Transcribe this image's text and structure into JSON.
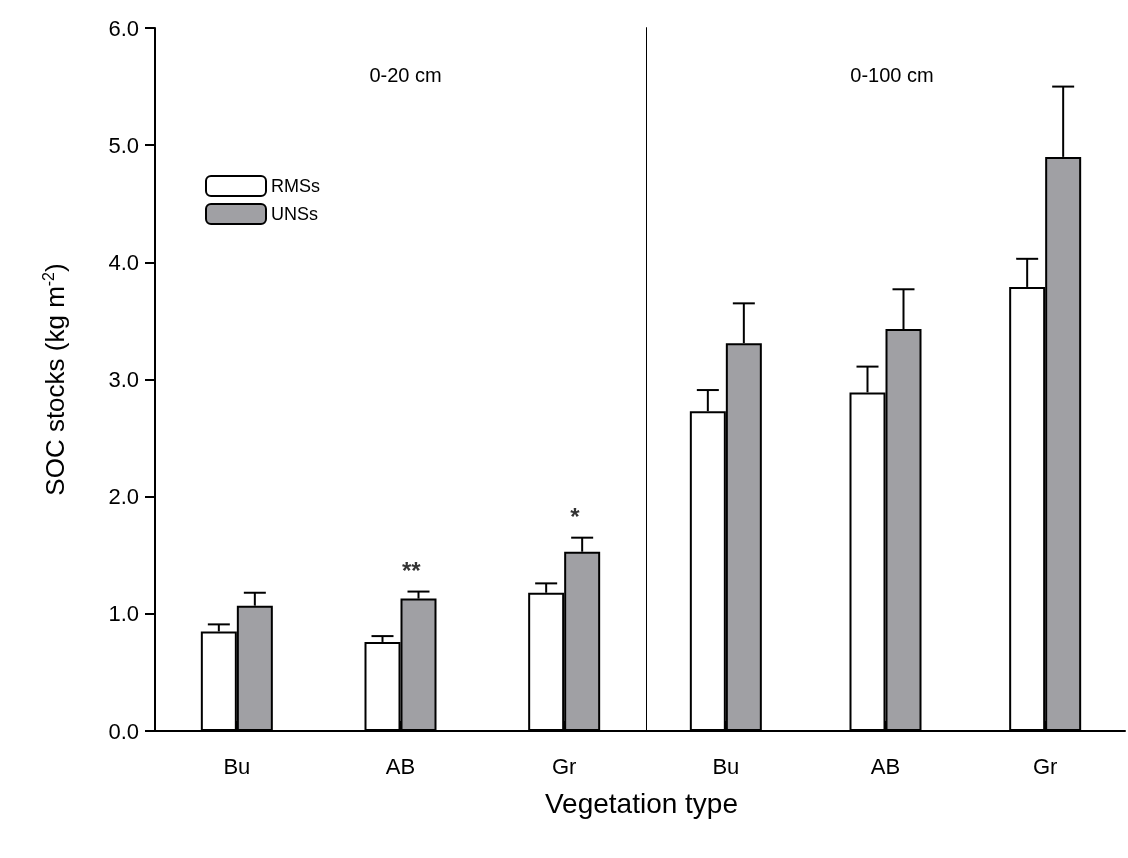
{
  "chart_data": [
    {
      "type": "bar",
      "title": "0-20 cm",
      "xlabel": "Vegetation type",
      "ylabel": "SOC stocks (kg m$^{-2}$)",
      "categories": [
        "Bu",
        "AB",
        "Gr"
      ],
      "series": [
        {
          "name": "RMSs",
          "color": "#ffffff",
          "values": [
            0.85,
            0.76,
            1.18
          ],
          "errors": [
            0.06,
            0.05,
            0.08
          ]
        },
        {
          "name": "UNSs",
          "color": "#a0a0a4",
          "values": [
            1.07,
            1.13,
            1.53
          ],
          "errors": [
            0.11,
            0.06,
            0.12
          ]
        }
      ],
      "ylim": [
        0,
        6
      ],
      "yticks": [
        {
          "value": 0,
          "label": "0.0"
        },
        {
          "value": 1,
          "label": "1.0"
        },
        {
          "value": 2,
          "label": "2.0"
        },
        {
          "value": 3,
          "label": "3.0"
        },
        {
          "value": 4,
          "label": "4.0"
        },
        {
          "value": 5,
          "label": "5.0"
        },
        {
          "value": 6,
          "label": "6.0"
        }
      ],
      "annotations": [
        {
          "text": "**",
          "x": "AB",
          "y": 1.13
        },
        {
          "text": "*",
          "x": "Gr",
          "y": 1.53
        }
      ],
      "legend": "top left",
      "grid": false
    },
    {
      "type": "bar",
      "title": "0-100 cm",
      "categories": [
        "Bu",
        "AB",
        "Gr"
      ],
      "series": [
        {
          "color": "#ffffff",
          "values": [
            2.73,
            2.89,
            3.79
          ],
          "errors": [
            0.18,
            0.22,
            0.24
          ]
        },
        {
          "color": "#a0a0a4",
          "values": [
            3.31,
            3.43,
            4.9
          ],
          "errors": [
            0.34,
            0.34,
            0.6
          ]
        }
      ],
      "ylim": [
        0,
        6
      ],
      "tick_labels": "x",
      "legend": false,
      "grid": false
    }
  ]
}
